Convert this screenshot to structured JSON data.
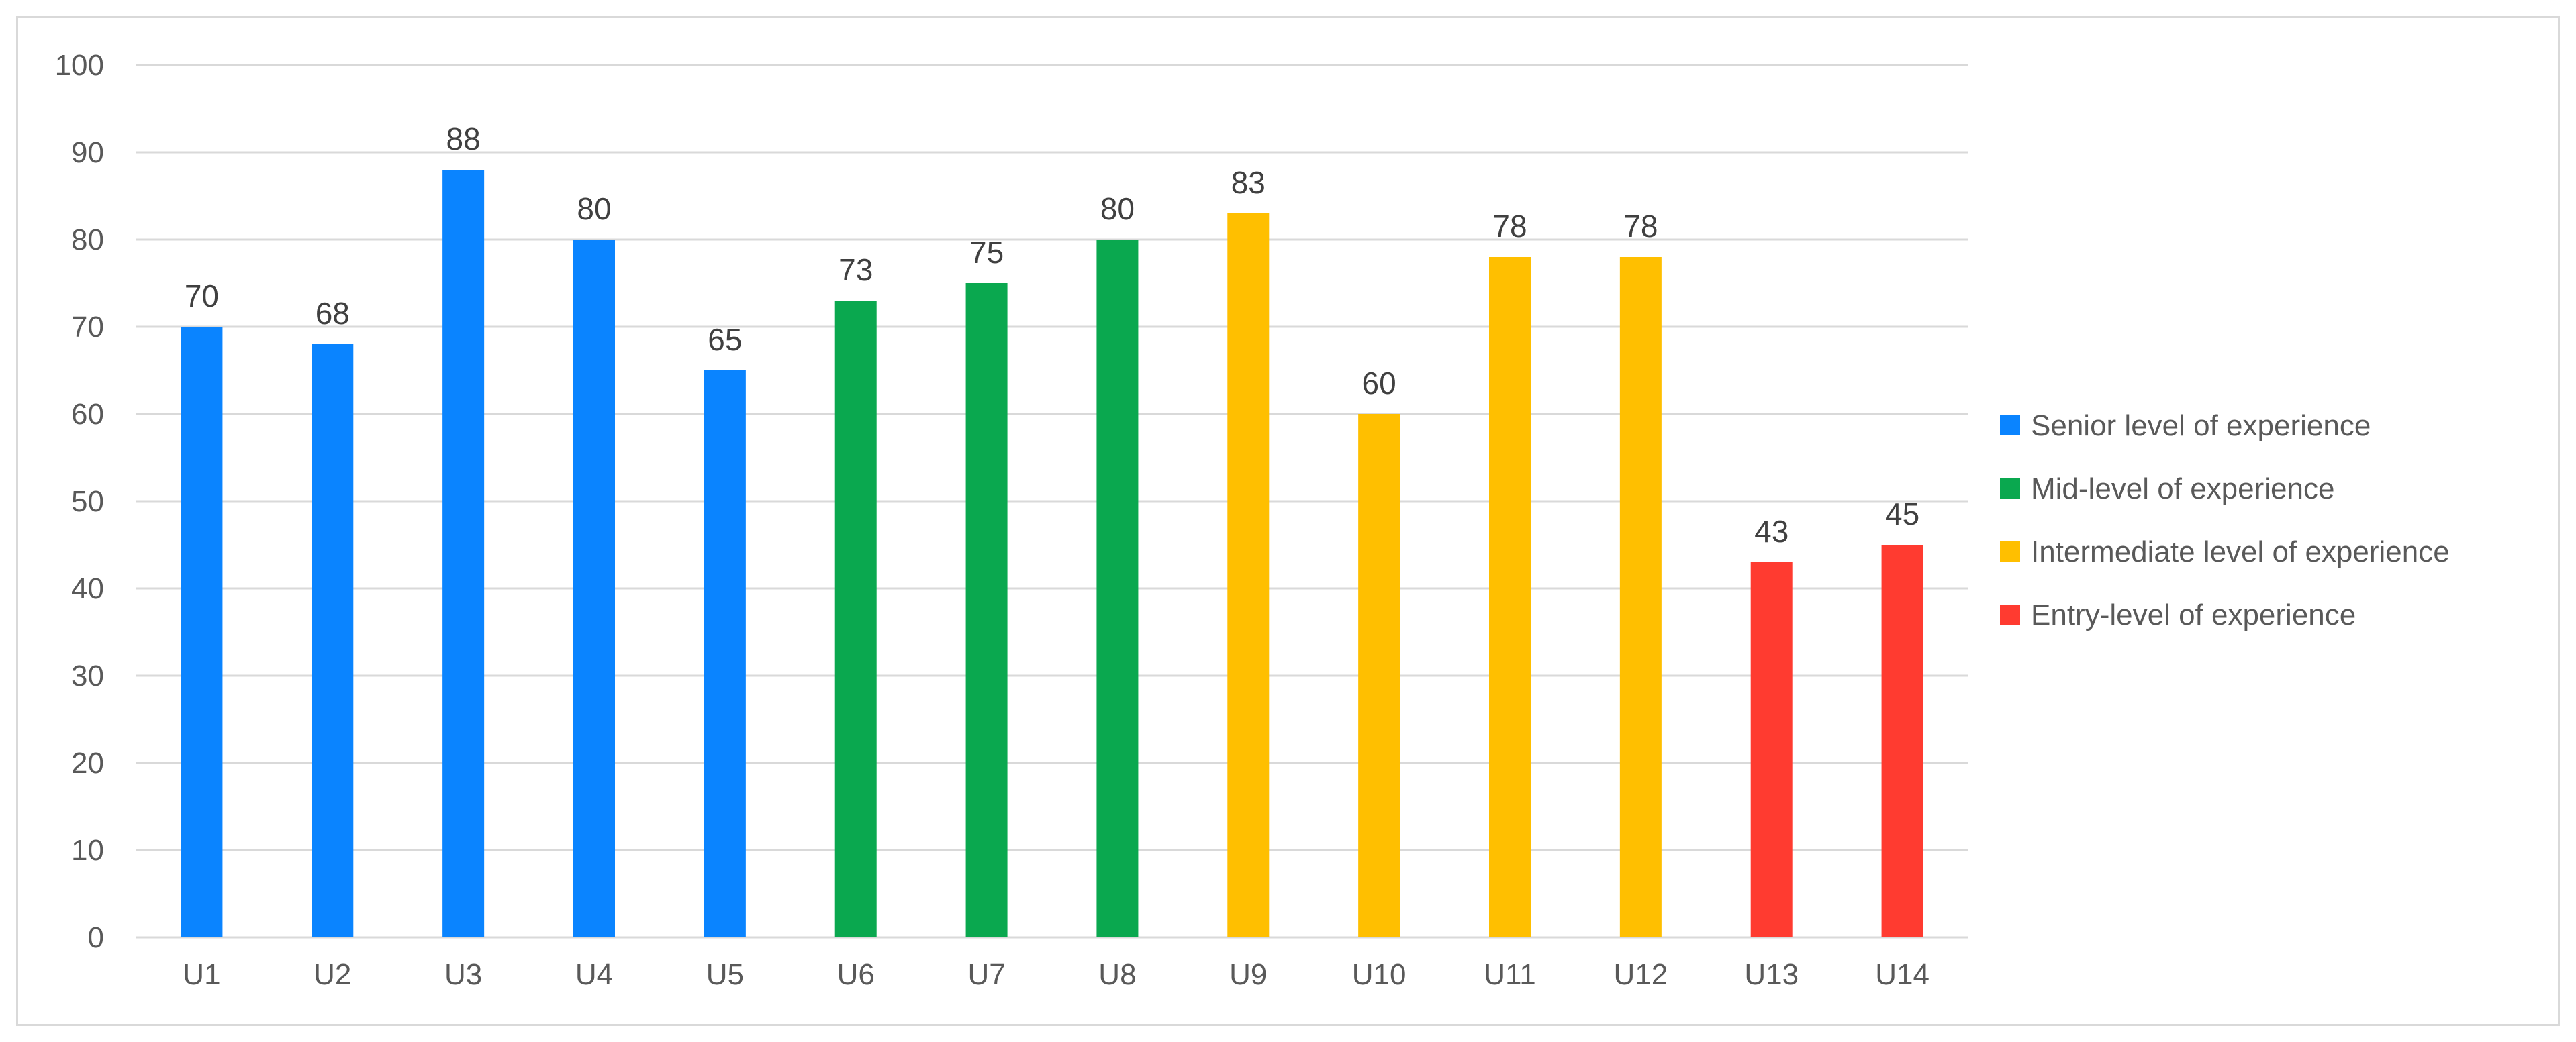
{
  "chart_data": {
    "type": "bar",
    "title": "",
    "xlabel": "",
    "ylabel": "",
    "ylim": [
      0,
      100
    ],
    "yticks": [
      0,
      10,
      20,
      30,
      40,
      50,
      60,
      70,
      80,
      90,
      100
    ],
    "grid": true,
    "legend_position": "right",
    "categories": [
      "U1",
      "U2",
      "U3",
      "U4",
      "U5",
      "U6",
      "U7",
      "U8",
      "U9",
      "U10",
      "U11",
      "U12",
      "U13",
      "U14"
    ],
    "values": [
      70,
      68,
      88,
      80,
      65,
      73,
      75,
      80,
      83,
      60,
      78,
      78,
      43,
      45
    ],
    "groups": [
      0,
      0,
      0,
      0,
      0,
      1,
      1,
      1,
      2,
      2,
      2,
      2,
      3,
      3
    ],
    "legend": [
      {
        "name": "Senior level of experience",
        "color": "#0a84ff"
      },
      {
        "name": "Mid-level of experience",
        "color": "#0aa84f"
      },
      {
        "name": "Intermediate level of experience",
        "color": "#ffbf00"
      },
      {
        "name": "Entry-level of experience",
        "color": "#ff3b30"
      }
    ]
  }
}
